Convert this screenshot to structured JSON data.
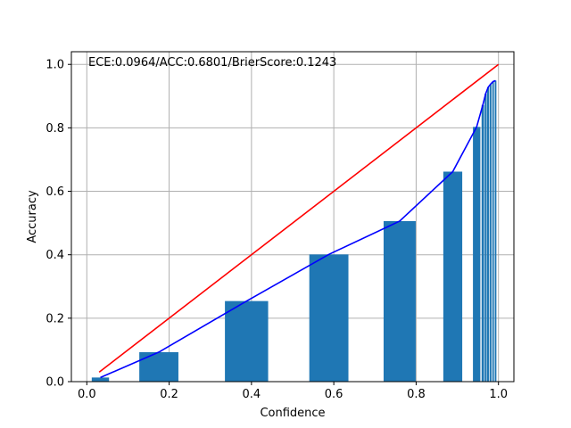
{
  "chart_data": {
    "type": "bar",
    "title": "",
    "xlabel": "Confidence",
    "ylabel": "Accuracy",
    "xlim": [
      -0.0375,
      1.0375
    ],
    "ylim": [
      0,
      1.04
    ],
    "xticks": [
      0.0,
      0.2,
      0.4,
      0.6,
      0.8,
      1.0
    ],
    "xtick_labels": [
      "0.0",
      "0.2",
      "0.4",
      "0.6",
      "0.8",
      "1.0"
    ],
    "yticks": [
      0.0,
      0.2,
      0.4,
      0.6,
      0.8,
      1.0
    ],
    "ytick_labels": [
      "0.0",
      "0.2",
      "0.4",
      "0.6",
      "0.8",
      "1.0"
    ],
    "grid": true,
    "annotation": "ECE:0.0964/ACC:0.6801/BrierScore:0.1243",
    "colors": {
      "bars": "#1f77b4",
      "reference_line": "#ff0000",
      "accuracy_line": "#0000ff",
      "grid": "#b0b0b0"
    },
    "bars": [
      {
        "x": 0.033,
        "width": 0.042,
        "value": 0.013
      },
      {
        "x": 0.175,
        "width": 0.095,
        "value": 0.093
      },
      {
        "x": 0.388,
        "width": 0.105,
        "value": 0.254
      },
      {
        "x": 0.588,
        "width": 0.095,
        "value": 0.401
      },
      {
        "x": 0.76,
        "width": 0.078,
        "value": 0.506
      },
      {
        "x": 0.889,
        "width": 0.046,
        "value": 0.662
      },
      {
        "x": 0.947,
        "width": 0.018,
        "value": 0.803
      },
      {
        "x": 0.962,
        "width": 0.006,
        "value": 0.872
      },
      {
        "x": 0.969,
        "width": 0.005,
        "value": 0.908
      },
      {
        "x": 0.975,
        "width": 0.005,
        "value": 0.928
      },
      {
        "x": 0.981,
        "width": 0.004,
        "value": 0.938
      },
      {
        "x": 0.987,
        "width": 0.004,
        "value": 0.946
      },
      {
        "x": 0.993,
        "width": 0.004,
        "value": 0.949
      }
    ],
    "series": [
      {
        "type": "line",
        "x": [
          0.03,
          1.0
        ],
        "y": [
          0.03,
          1.0
        ]
      },
      {
        "type": "line",
        "x": [
          0.033,
          0.175,
          0.388,
          0.588,
          0.76,
          0.889,
          0.947,
          0.962,
          0.969,
          0.975,
          0.981,
          0.987,
          0.993
        ],
        "y": [
          0.013,
          0.093,
          0.254,
          0.401,
          0.506,
          0.662,
          0.803,
          0.872,
          0.908,
          0.928,
          0.938,
          0.946,
          0.949
        ]
      }
    ]
  }
}
